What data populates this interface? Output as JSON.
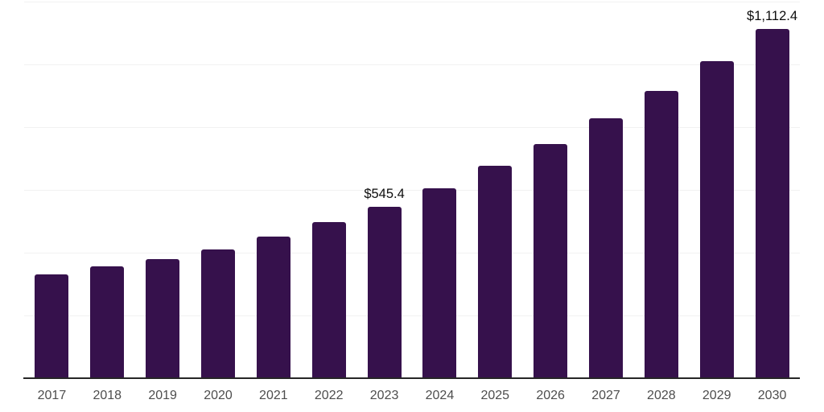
{
  "chart": {
    "background_color": "#ffffff",
    "bar_color": "#36114c",
    "axis_line_color": "#262626",
    "gridline_color": "#f2f2f2",
    "tick_label_color": "#4d4d4d",
    "data_label_color": "#0d0d0d"
  },
  "chart_data": {
    "type": "bar",
    "title": "",
    "xlabel": "",
    "ylabel": "",
    "categories": [
      "2017",
      "2018",
      "2019",
      "2020",
      "2021",
      "2022",
      "2023",
      "2024",
      "2025",
      "2026",
      "2027",
      "2028",
      "2029",
      "2030"
    ],
    "values": [
      330,
      354,
      378,
      409,
      451,
      495,
      545.4,
      603,
      676,
      744,
      828,
      913,
      1010,
      1112.4
    ],
    "data_labels": [
      "",
      "",
      "",
      "",
      "",
      "",
      "$545.4",
      "",
      "",
      "",
      "",
      "",
      "",
      "$1,112.4"
    ],
    "ylim": [
      0,
      1200
    ],
    "gridline_step": 200,
    "grid": "horizontal-only",
    "y_axis_tick_labels_visible": false,
    "legend_position": "none"
  }
}
